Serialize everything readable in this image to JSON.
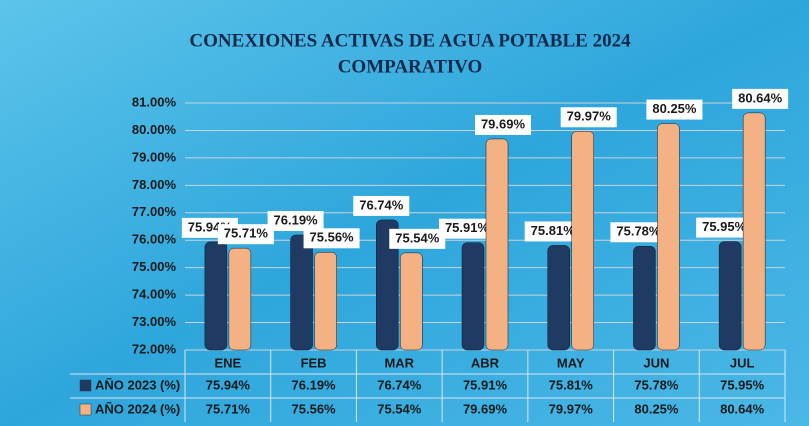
{
  "chart_data": {
    "type": "bar",
    "title": "CONEXIONES ACTIVAS DE AGUA POTABLE 2024",
    "subtitle": "COMPARATIVO",
    "categories": [
      "ENE",
      "FEB",
      "MAR",
      "ABR",
      "MAY",
      "JUN",
      "JUL"
    ],
    "series": [
      {
        "name": "AÑO 2023 (%)",
        "color": "#1f3b63",
        "values": [
          75.94,
          76.19,
          76.74,
          75.91,
          75.81,
          75.78,
          75.95
        ],
        "value_labels": [
          "75.94%",
          "76.19%",
          "76.74%",
          "75.91%",
          "75.81%",
          "75.78%",
          "75.95%"
        ]
      },
      {
        "name": "AÑO 2024 (%)",
        "color": "#f4b183",
        "values": [
          75.71,
          75.56,
          75.54,
          79.69,
          79.97,
          80.25,
          80.64
        ],
        "value_labels": [
          "75.71%",
          "75.56%",
          "75.54%",
          "79.69%",
          "79.97%",
          "80.25%",
          "80.64%"
        ]
      }
    ],
    "ylim": [
      72,
      81
    ],
    "yticks": [
      {
        "value": 72,
        "label": "72.00%"
      },
      {
        "value": 73,
        "label": "73.00%"
      },
      {
        "value": 74,
        "label": "74.00%"
      },
      {
        "value": 75,
        "label": "75.00%"
      },
      {
        "value": 76,
        "label": "76.00%"
      },
      {
        "value": 77,
        "label": "77.00%"
      },
      {
        "value": 78,
        "label": "78.00%"
      },
      {
        "value": 79,
        "label": "79.00%"
      },
      {
        "value": 80,
        "label": "80.00%"
      },
      {
        "value": 81,
        "label": "81.00%"
      }
    ],
    "grid": true
  }
}
